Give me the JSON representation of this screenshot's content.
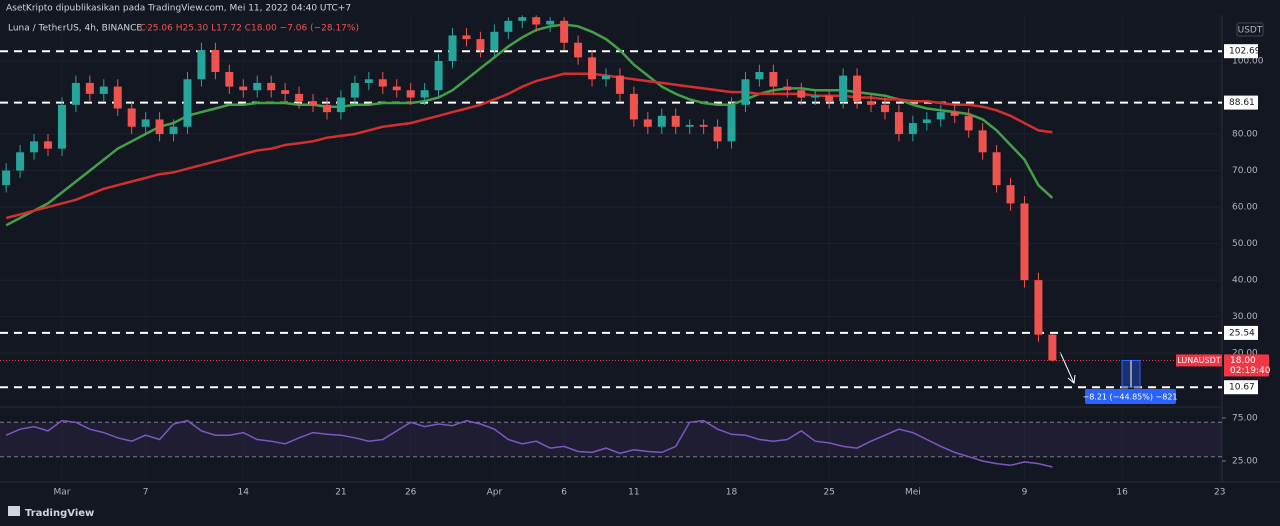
{
  "header": {
    "publisher": "AsetKripto dipublikasikan pada TradingView.com, Mei 11, 2022 04:40 UTC+7",
    "footer": "TradingView"
  },
  "chart_data": {
    "type": "candlestick",
    "symbol": "Luna / TetherUS, 4h, BINANCE",
    "ohlc": "O25.06 H25.30 L17.72 C18.00 −7.06 (−28.17%)",
    "currency": "USDT",
    "x": [
      -4,
      -3,
      -2,
      -1,
      0,
      1,
      2,
      3,
      4,
      5,
      6,
      7,
      8,
      9,
      10,
      11,
      12,
      13,
      14,
      15,
      16,
      17,
      18,
      19,
      20,
      21,
      22,
      23,
      24,
      25,
      26,
      27,
      28,
      29,
      30,
      31,
      32,
      33,
      34,
      35,
      36,
      37,
      38,
      39,
      40,
      41,
      42,
      43,
      44,
      45,
      46,
      47,
      48,
      49,
      50,
      51,
      52,
      53,
      54,
      55,
      56,
      57,
      58,
      59,
      60,
      61,
      62,
      63,
      64,
      65,
      66,
      67,
      68,
      69,
      70,
      71
    ],
    "open": [
      66,
      70,
      75,
      78,
      76,
      88,
      94,
      91,
      93,
      87,
      82,
      84,
      80,
      82,
      95,
      103,
      97,
      93,
      92,
      94,
      92,
      91,
      89,
      88,
      86,
      90,
      94,
      95,
      93,
      92,
      90,
      92,
      100,
      107,
      106,
      103,
      108,
      111,
      112,
      110,
      111,
      105,
      101,
      95,
      96,
      91,
      84,
      82,
      85,
      82,
      82.5,
      82,
      78,
      88,
      95,
      97,
      93,
      92,
      90,
      90.5,
      89,
      96,
      89,
      88,
      86,
      80,
      83,
      84,
      86,
      85,
      81,
      75,
      66,
      61,
      40,
      25.06
    ],
    "high": [
      72,
      77,
      80,
      80,
      90,
      96,
      96,
      95,
      95,
      89,
      86,
      86,
      84,
      97,
      105,
      105,
      99,
      95,
      96,
      96,
      94,
      93,
      91,
      90,
      92,
      96,
      97,
      97,
      95,
      94,
      94,
      102,
      109,
      109,
      108,
      110,
      112,
      112.5,
      112.5,
      112,
      112,
      107,
      103,
      98,
      98,
      93,
      86,
      87,
      87,
      84,
      84,
      84,
      90,
      97,
      99,
      99,
      95,
      94,
      92,
      92,
      98,
      98,
      91,
      90,
      88,
      85,
      86,
      88,
      88,
      87,
      83,
      77,
      68,
      63,
      42,
      25.3
    ],
    "low": [
      64,
      68,
      73,
      74,
      74,
      86,
      89,
      89,
      85,
      80,
      80,
      78,
      78,
      80,
      93,
      95,
      91,
      90,
      90,
      90,
      89,
      87,
      86,
      84,
      84,
      88,
      92,
      91,
      90,
      88,
      88,
      90,
      98,
      104,
      101,
      101,
      106,
      109,
      108,
      108,
      103,
      99,
      93,
      93,
      89,
      82,
      80,
      80,
      80,
      80,
      80,
      76,
      76,
      86,
      93,
      91,
      90,
      88,
      88,
      87,
      87,
      87,
      86,
      84,
      78,
      78,
      81,
      82,
      83,
      79,
      73,
      64,
      59,
      38,
      23,
      17.72
    ],
    "close": [
      70,
      75,
      78,
      76,
      88,
      94,
      91,
      93,
      87,
      82,
      84,
      80,
      82,
      95,
      103,
      97,
      93,
      92,
      94,
      92,
      91,
      89,
      88,
      86,
      90,
      94,
      95,
      93,
      92,
      90,
      92,
      100,
      107,
      106,
      103,
      108,
      111,
      112,
      110,
      111,
      105,
      101,
      95,
      96,
      91,
      84,
      82,
      85,
      82,
      82.5,
      82,
      78,
      88,
      95,
      97,
      93,
      92,
      90,
      90.5,
      89,
      96,
      89,
      88,
      86,
      80,
      83,
      84,
      86,
      85,
      81,
      75,
      66,
      61,
      40,
      25.06,
      18
    ],
    "up_color": "#26a69a",
    "down_color": "#ef5350",
    "ma_fast": {
      "color": "#43a047",
      "values": [
        55,
        57,
        59,
        61,
        64,
        67,
        70,
        73,
        76,
        78,
        80,
        82,
        83,
        85,
        86,
        87,
        88,
        88,
        88.5,
        88.5,
        88.5,
        88,
        88,
        87.5,
        87.5,
        88,
        88,
        88.5,
        88.5,
        88.5,
        89,
        90,
        92,
        95,
        98,
        101,
        104,
        106.5,
        108.5,
        109.5,
        110,
        109.5,
        108,
        106,
        103,
        99,
        96,
        93,
        91,
        89.5,
        88.5,
        88,
        88,
        89.5,
        91,
        92,
        92.5,
        92.5,
        92,
        92,
        92,
        91.5,
        91,
        90.5,
        89.5,
        88,
        87,
        86.5,
        86,
        85.5,
        84,
        81,
        77,
        73,
        66,
        62.5
      ]
    },
    "ma_slow": {
      "color": "#d32f2f",
      "values": [
        57,
        58,
        59,
        60,
        61,
        62,
        63.5,
        65,
        66,
        67,
        68,
        69,
        69.5,
        70.5,
        71.5,
        72.5,
        73.5,
        74.5,
        75.5,
        76,
        77,
        77.5,
        78,
        79,
        79.5,
        80,
        81,
        82,
        82.5,
        83,
        84,
        85,
        86,
        87,
        88,
        89.5,
        91,
        93,
        94.5,
        95.5,
        96.5,
        96.5,
        96.5,
        96,
        95.5,
        95,
        94.5,
        94,
        93.5,
        93,
        92.5,
        92,
        91.5,
        91.5,
        91,
        91,
        91,
        91,
        90.5,
        90.5,
        90.5,
        90,
        90,
        89.5,
        89.5,
        89,
        89,
        88.5,
        88,
        88,
        87.5,
        86.5,
        85,
        83,
        81,
        80.5
      ]
    },
    "levels": [
      102.69,
      88.61,
      25.54,
      10.67
    ],
    "last_price": {
      "symbol": "LUNAUSDT",
      "price": {
        "value": 18,
        "label": "18.00"
      },
      "countdown": "02:19:40",
      "color": "#f23645"
    },
    "measure": {
      "label": "−8.21 (−44.85%) −821",
      "color": "#2962ff"
    },
    "ylim": [
      5.8,
      112.6
    ],
    "yticks": [
      {
        "value": 20,
        "label": "20.00"
      },
      {
        "value": 30,
        "label": "30.00"
      },
      {
        "value": 40,
        "label": "40.00"
      },
      {
        "value": 50,
        "label": "50.00"
      },
      {
        "value": 60,
        "label": "60.00"
      },
      {
        "value": 70,
        "label": "70.00"
      },
      {
        "value": 80,
        "label": "80.00"
      },
      {
        "value": 100,
        "label": "100.00"
      }
    ],
    "xlim": [
      -4.44,
      83.16
    ],
    "xticks": [
      {
        "value": 0,
        "label": "Mar"
      },
      {
        "value": 6,
        "label": "7"
      },
      {
        "value": 13,
        "label": "14"
      },
      {
        "value": 20,
        "label": "21"
      },
      {
        "value": 25,
        "label": "26"
      },
      {
        "value": 31,
        "label": "Apr"
      },
      {
        "value": 36,
        "label": "6"
      },
      {
        "value": 41,
        "label": "11"
      },
      {
        "value": 48,
        "label": "18"
      },
      {
        "value": 55,
        "label": "25"
      },
      {
        "value": 61,
        "label": "Mei"
      },
      {
        "value": 69,
        "label": "9"
      },
      {
        "value": 76,
        "label": "16"
      },
      {
        "value": 83,
        "label": "23"
      }
    ],
    "rsi": {
      "color": "#7e57c2",
      "ylim": [
        0.6,
        86.6
      ],
      "bands": [
        70,
        30
      ],
      "yticks": [
        {
          "value": 75,
          "label": "75.00"
        },
        {
          "value": 25,
          "label": "25.00"
        }
      ],
      "values": [
        55,
        62,
        65,
        60,
        72,
        70,
        62,
        58,
        52,
        48,
        55,
        50,
        68,
        72,
        60,
        55,
        55,
        58,
        50,
        48,
        45,
        52,
        58,
        56,
        55,
        52,
        48,
        50,
        60,
        70,
        65,
        68,
        66,
        72,
        68,
        62,
        50,
        45,
        48,
        40,
        42,
        36,
        35,
        40,
        34,
        38,
        36,
        35,
        42,
        70,
        72,
        62,
        56,
        55,
        50,
        48,
        50,
        60,
        48,
        46,
        42,
        40,
        48,
        55,
        62,
        58,
        50,
        42,
        35,
        30,
        25,
        22,
        20,
        24,
        22,
        18
      ]
    }
  }
}
